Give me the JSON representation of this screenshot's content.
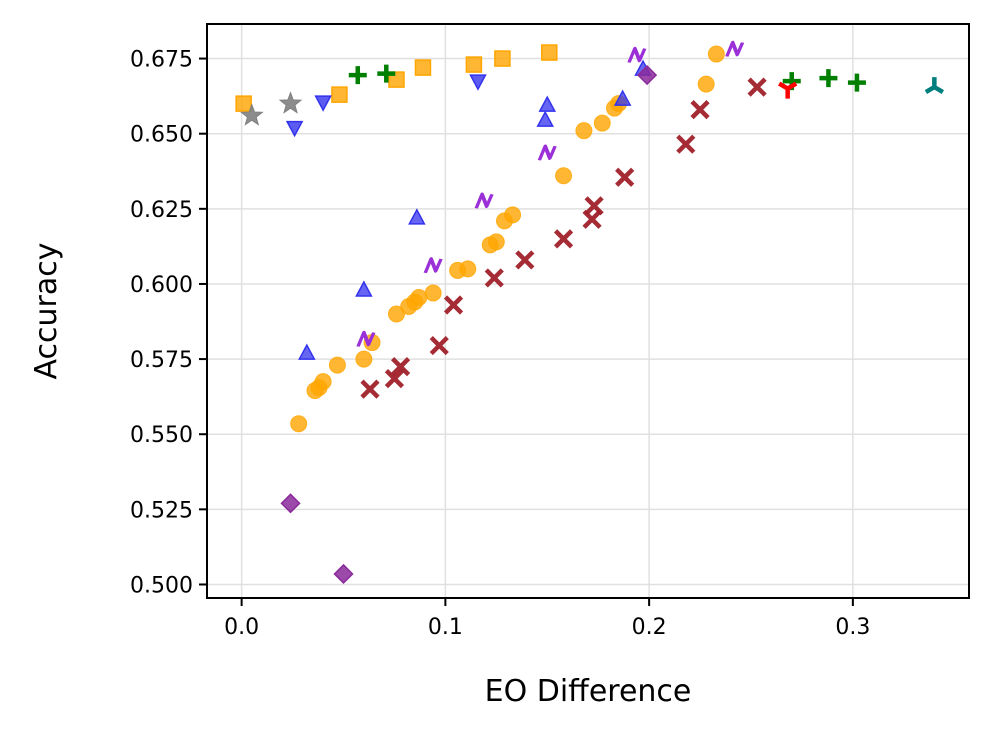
{
  "chart_data": {
    "type": "scatter",
    "title": "",
    "xlabel": "EO Difference",
    "ylabel": "Accuracy",
    "xlim": [
      -0.017,
      0.357
    ],
    "ylim": [
      0.4955,
      0.6865
    ],
    "xticks": [
      0.0,
      0.1,
      0.2,
      0.3
    ],
    "xtick_labels": [
      "0.0",
      "0.1",
      "0.2",
      "0.3"
    ],
    "yticks": [
      0.5,
      0.525,
      0.55,
      0.575,
      0.6,
      0.625,
      0.65,
      0.675
    ],
    "ytick_labels": [
      "0.500",
      "0.525",
      "0.550",
      "0.575",
      "0.600",
      "0.625",
      "0.650",
      "0.675"
    ],
    "grid": true,
    "legend": "none",
    "series": [
      {
        "marker": "circle",
        "color": "#FFA500",
        "x": [
          0.028,
          0.036,
          0.038,
          0.04,
          0.047,
          0.06,
          0.064,
          0.076,
          0.082,
          0.085,
          0.087,
          0.094,
          0.106,
          0.111,
          0.122,
          0.125,
          0.129,
          0.133,
          0.158,
          0.168,
          0.177,
          0.183,
          0.185,
          0.228,
          0.233
        ],
        "y": [
          0.5535,
          0.5645,
          0.5655,
          0.5675,
          0.573,
          0.575,
          0.5805,
          0.59,
          0.5925,
          0.594,
          0.5955,
          0.597,
          0.6045,
          0.605,
          0.613,
          0.614,
          0.621,
          0.623,
          0.636,
          0.651,
          0.6535,
          0.6585,
          0.66,
          0.6665,
          0.6765
        ]
      },
      {
        "marker": "x",
        "color": "#A0202A",
        "x": [
          0.063,
          0.075,
          0.078,
          0.097,
          0.104,
          0.124,
          0.139,
          0.158,
          0.172,
          0.173,
          0.188,
          0.218,
          0.225,
          0.253
        ],
        "y": [
          0.565,
          0.5685,
          0.5725,
          0.5795,
          0.593,
          0.602,
          0.608,
          0.615,
          0.6215,
          0.626,
          0.6355,
          0.6465,
          0.658,
          0.6655
        ]
      },
      {
        "marker": "square",
        "color": "#FFA500",
        "x": [
          0.001,
          0.048,
          0.076,
          0.089,
          0.114,
          0.128,
          0.151
        ],
        "y": [
          0.66,
          0.663,
          0.668,
          0.672,
          0.673,
          0.675,
          0.677
        ]
      },
      {
        "marker": "triangle-up",
        "color": "#3333EE",
        "x": [
          0.032,
          0.06,
          0.086,
          0.149,
          0.15,
          0.187,
          0.197
        ],
        "y": [
          0.577,
          0.598,
          0.622,
          0.6545,
          0.6595,
          0.6615,
          0.6715
        ]
      },
      {
        "marker": "triangle-down",
        "color": "#3333EE",
        "x": [
          0.026,
          0.04,
          0.116
        ],
        "y": [
          0.652,
          0.6605,
          0.6675
        ]
      },
      {
        "marker": "plus",
        "color": "#007F00",
        "x": [
          0.057,
          0.071,
          0.27,
          0.288,
          0.302
        ],
        "y": [
          0.6695,
          0.67,
          0.6675,
          0.6685,
          0.667
        ]
      },
      {
        "marker": "star",
        "color": "#808080",
        "x": [
          0.005,
          0.024
        ],
        "y": [
          0.656,
          0.66
        ]
      },
      {
        "marker": "N",
        "color": "#9B30D9",
        "x": [
          0.061,
          0.094,
          0.119,
          0.15,
          0.194,
          0.242
        ],
        "y": [
          0.5815,
          0.606,
          0.6275,
          0.6435,
          0.676,
          0.678
        ]
      },
      {
        "marker": "diamond",
        "color": "#8B2A9B",
        "x": [
          0.024,
          0.05,
          0.199
        ],
        "y": [
          0.527,
          0.5035,
          0.6695
        ]
      },
      {
        "marker": "tri-down",
        "color": "#FF0000",
        "x": [
          0.268
        ],
        "y": [
          0.665
        ]
      },
      {
        "marker": "tri-up",
        "color": "#007F7F",
        "x": [
          0.34
        ],
        "y": [
          0.6655
        ]
      }
    ]
  }
}
